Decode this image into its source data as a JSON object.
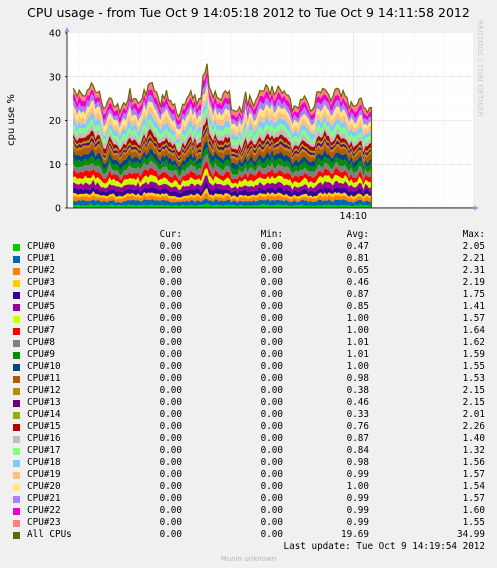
{
  "title": "CPU usage - from Tue Oct  9 14:05:18 2012 to Tue Oct  9 14:11:58 2012",
  "side_label": "RRDTOOL / TOBI OETIKER",
  "legend_headers": {
    "cur": "Cur:",
    "min": "Min:",
    "avg": "Avg:",
    "max": "Max:"
  },
  "legend": [
    {
      "name": "CPU#0",
      "color": "#00cc00",
      "cur": "0.00",
      "min": "0.00",
      "avg": "0.47",
      "max": "2.05"
    },
    {
      "name": "CPU#1",
      "color": "#0066b3",
      "cur": "0.00",
      "min": "0.00",
      "avg": "0.81",
      "max": "2.21"
    },
    {
      "name": "CPU#2",
      "color": "#ff8000",
      "cur": "0.00",
      "min": "0.00",
      "avg": "0.65",
      "max": "2.31"
    },
    {
      "name": "CPU#3",
      "color": "#ffcc00",
      "cur": "0.00",
      "min": "0.00",
      "avg": "0.46",
      "max": "2.19"
    },
    {
      "name": "CPU#4",
      "color": "#330099",
      "cur": "0.00",
      "min": "0.00",
      "avg": "0.87",
      "max": "1.75"
    },
    {
      "name": "CPU#5",
      "color": "#990099",
      "cur": "0.00",
      "min": "0.00",
      "avg": "0.85",
      "max": "1.41"
    },
    {
      "name": "CPU#6",
      "color": "#ccff00",
      "cur": "0.00",
      "min": "0.00",
      "avg": "1.00",
      "max": "1.57"
    },
    {
      "name": "CPU#7",
      "color": "#ff0000",
      "cur": "0.00",
      "min": "0.00",
      "avg": "1.00",
      "max": "1.64"
    },
    {
      "name": "CPU#8",
      "color": "#808080",
      "cur": "0.00",
      "min": "0.00",
      "avg": "1.01",
      "max": "1.62"
    },
    {
      "name": "CPU#9",
      "color": "#008f00",
      "cur": "0.00",
      "min": "0.00",
      "avg": "1.01",
      "max": "1.59"
    },
    {
      "name": "CPU#10",
      "color": "#00487d",
      "cur": "0.00",
      "min": "0.00",
      "avg": "1.00",
      "max": "1.55"
    },
    {
      "name": "CPU#11",
      "color": "#b35a00",
      "cur": "0.00",
      "min": "0.00",
      "avg": "0.98",
      "max": "1.53"
    },
    {
      "name": "CPU#12",
      "color": "#b38f00",
      "cur": "0.00",
      "min": "0.00",
      "avg": "0.38",
      "max": "2.15"
    },
    {
      "name": "CPU#13",
      "color": "#6b006b",
      "cur": "0.00",
      "min": "0.00",
      "avg": "0.46",
      "max": "2.15"
    },
    {
      "name": "CPU#14",
      "color": "#8fb300",
      "cur": "0.00",
      "min": "0.00",
      "avg": "0.33",
      "max": "2.01"
    },
    {
      "name": "CPU#15",
      "color": "#b30000",
      "cur": "0.00",
      "min": "0.00",
      "avg": "0.76",
      "max": "2.26"
    },
    {
      "name": "CPU#16",
      "color": "#bebebe",
      "cur": "0.00",
      "min": "0.00",
      "avg": "0.87",
      "max": "1.40"
    },
    {
      "name": "CPU#17",
      "color": "#80ff80",
      "cur": "0.00",
      "min": "0.00",
      "avg": "0.84",
      "max": "1.32"
    },
    {
      "name": "CPU#18",
      "color": "#80c9ff",
      "cur": "0.00",
      "min": "0.00",
      "avg": "0.98",
      "max": "1.56"
    },
    {
      "name": "CPU#19",
      "color": "#ffc080",
      "cur": "0.00",
      "min": "0.00",
      "avg": "0.99",
      "max": "1.57"
    },
    {
      "name": "CPU#20",
      "color": "#ffe680",
      "cur": "0.00",
      "min": "0.00",
      "avg": "1.00",
      "max": "1.54"
    },
    {
      "name": "CPU#21",
      "color": "#aa80ff",
      "cur": "0.00",
      "min": "0.00",
      "avg": "0.99",
      "max": "1.57"
    },
    {
      "name": "CPU#22",
      "color": "#ee00cc",
      "cur": "0.00",
      "min": "0.00",
      "avg": "0.99",
      "max": "1.60"
    },
    {
      "name": "CPU#23",
      "color": "#ff8080",
      "cur": "0.00",
      "min": "0.00",
      "avg": "0.99",
      "max": "1.55"
    },
    {
      "name": "All CPUs",
      "color": "#666600",
      "cur": "0.00",
      "min": "0.00",
      "avg": "19.69",
      "max": "34.99"
    }
  ],
  "last_update": "Last update:  Tue Oct  9 14:19:54 2012",
  "footer": "Munin unknown",
  "chart_data": {
    "type": "area",
    "title": "CPU usage - from Tue Oct  9 14:05:18 2012 to Tue Oct  9 14:11:58 2012",
    "ylabel": "cpu use %",
    "xlabel": "",
    "ylim": [
      0,
      40
    ],
    "yticks": [
      0,
      10,
      20,
      30,
      40
    ],
    "x_ticks": [
      "14:10"
    ],
    "x_range": [
      "14:05:18",
      "14:11:58"
    ],
    "data_x_range": [
      "14:05:24",
      "14:10:18"
    ],
    "x_tick_values": [
      "14:10:00"
    ],
    "stacked": true,
    "grid": true,
    "series": [
      {
        "name": "CPU#0",
        "avg": 0.47,
        "max": 2.05
      },
      {
        "name": "CPU#1",
        "avg": 0.81,
        "max": 2.21
      },
      {
        "name": "CPU#2",
        "avg": 0.65,
        "max": 2.31
      },
      {
        "name": "CPU#3",
        "avg": 0.46,
        "max": 2.19
      },
      {
        "name": "CPU#4",
        "avg": 0.87,
        "max": 1.75
      },
      {
        "name": "CPU#5",
        "avg": 0.85,
        "max": 1.41
      },
      {
        "name": "CPU#6",
        "avg": 1.0,
        "max": 1.57
      },
      {
        "name": "CPU#7",
        "avg": 1.0,
        "max": 1.64
      },
      {
        "name": "CPU#8",
        "avg": 1.01,
        "max": 1.62
      },
      {
        "name": "CPU#9",
        "avg": 1.01,
        "max": 1.59
      },
      {
        "name": "CPU#10",
        "avg": 1.0,
        "max": 1.55
      },
      {
        "name": "CPU#11",
        "avg": 0.98,
        "max": 1.53
      },
      {
        "name": "CPU#12",
        "avg": 0.38,
        "max": 2.15
      },
      {
        "name": "CPU#13",
        "avg": 0.46,
        "max": 2.15
      },
      {
        "name": "CPU#14",
        "avg": 0.33,
        "max": 2.01
      },
      {
        "name": "CPU#15",
        "avg": 0.76,
        "max": 2.26
      },
      {
        "name": "CPU#16",
        "avg": 0.87,
        "max": 1.4
      },
      {
        "name": "CPU#17",
        "avg": 0.84,
        "max": 1.32
      },
      {
        "name": "CPU#18",
        "avg": 0.98,
        "max": 1.56
      },
      {
        "name": "CPU#19",
        "avg": 0.99,
        "max": 1.57
      },
      {
        "name": "CPU#20",
        "avg": 1.0,
        "max": 1.54
      },
      {
        "name": "CPU#21",
        "avg": 0.99,
        "max": 1.57
      },
      {
        "name": "CPU#22",
        "avg": 0.99,
        "max": 1.6
      },
      {
        "name": "CPU#23",
        "avg": 0.99,
        "max": 1.55
      }
    ],
    "total_line": {
      "name": "All CPUs",
      "avg": 19.69,
      "max": 34.99
    }
  }
}
